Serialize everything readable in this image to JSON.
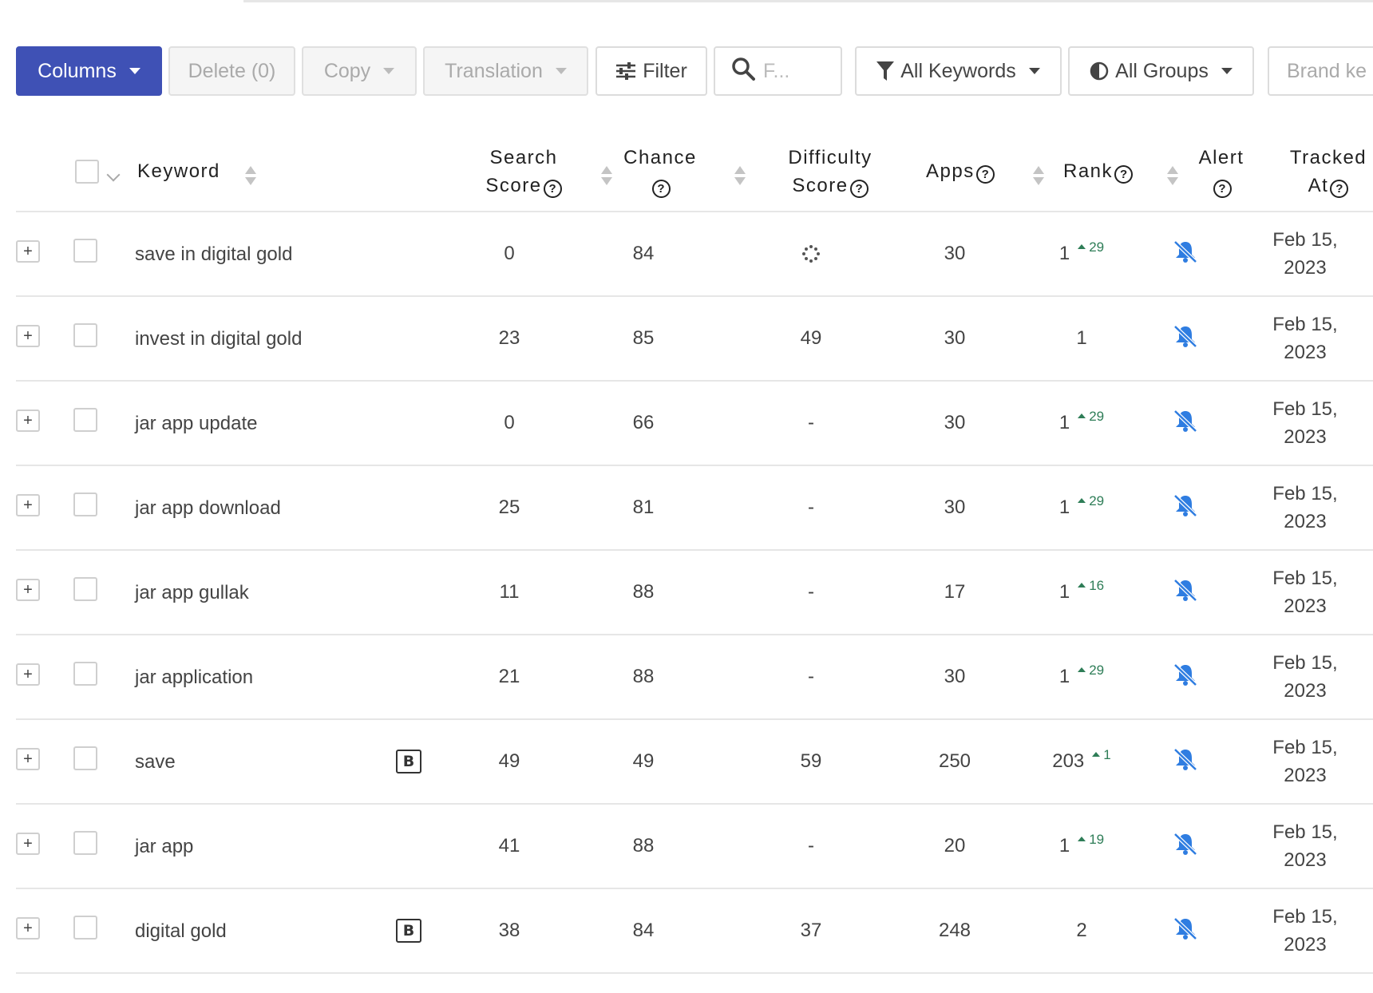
{
  "toolbar": {
    "columns_label": "Columns",
    "delete_label": "Delete (0)",
    "copy_label": "Copy",
    "translation_label": "Translation",
    "filter_label": "Filter",
    "search_placeholder": "F...",
    "keywords_label": "All Keywords",
    "groups_label": "All Groups",
    "brand_label": "Brand ke"
  },
  "columns": {
    "keyword": "Keyword",
    "search_line1": "Search",
    "search_line2": "Score",
    "chance": "Chance",
    "difficulty_line1": "Difficulty",
    "difficulty_line2": "Score",
    "apps": "Apps",
    "rank": "Rank",
    "alert": "Alert",
    "tracked_line1": "Tracked",
    "tracked_line2": "At",
    "help_glyph": "?"
  },
  "expand_glyph": "+",
  "brand_badge": "B",
  "rows": [
    {
      "keyword": "save in digital gold",
      "brand": false,
      "search_score": "0",
      "chance": "84",
      "difficulty": "",
      "difficulty_loading": true,
      "apps": "30",
      "rank": "1",
      "rank_change": "29",
      "tracked_line1": "Feb 15,",
      "tracked_line2": "2023"
    },
    {
      "keyword": "invest in digital gold",
      "brand": false,
      "search_score": "23",
      "chance": "85",
      "difficulty": "49",
      "apps": "30",
      "rank": "1",
      "rank_change": "",
      "tracked_line1": "Feb 15,",
      "tracked_line2": "2023"
    },
    {
      "keyword": "jar app update",
      "brand": false,
      "search_score": "0",
      "chance": "66",
      "difficulty": "-",
      "apps": "30",
      "rank": "1",
      "rank_change": "29",
      "tracked_line1": "Feb 15,",
      "tracked_line2": "2023"
    },
    {
      "keyword": "jar app download",
      "brand": false,
      "search_score": "25",
      "chance": "81",
      "difficulty": "-",
      "apps": "30",
      "rank": "1",
      "rank_change": "29",
      "tracked_line1": "Feb 15,",
      "tracked_line2": "2023"
    },
    {
      "keyword": "jar app gullak",
      "brand": false,
      "search_score": "11",
      "chance": "88",
      "difficulty": "-",
      "apps": "17",
      "rank": "1",
      "rank_change": "16",
      "tracked_line1": "Feb 15,",
      "tracked_line2": "2023"
    },
    {
      "keyword": "jar application",
      "brand": false,
      "search_score": "21",
      "chance": "88",
      "difficulty": "-",
      "apps": "30",
      "rank": "1",
      "rank_change": "29",
      "tracked_line1": "Feb 15,",
      "tracked_line2": "2023"
    },
    {
      "keyword": "save",
      "brand": true,
      "search_score": "49",
      "chance": "49",
      "difficulty": "59",
      "apps": "250",
      "rank": "203",
      "rank_change": "1",
      "tracked_line1": "Feb 15,",
      "tracked_line2": "2023"
    },
    {
      "keyword": "jar app",
      "brand": false,
      "search_score": "41",
      "chance": "88",
      "difficulty": "-",
      "apps": "20",
      "rank": "1",
      "rank_change": "19",
      "tracked_line1": "Feb 15,",
      "tracked_line2": "2023"
    },
    {
      "keyword": "digital gold",
      "brand": true,
      "search_score": "38",
      "chance": "84",
      "difficulty": "37",
      "apps": "248",
      "rank": "2",
      "rank_change": "",
      "tracked_line1": "Feb 15,",
      "tracked_line2": "2023"
    }
  ],
  "colors": {
    "primary": "#3f51b5",
    "rank_up": "#2e7d57",
    "alert_icon": "#2f7de1"
  },
  "icons": {
    "filter": "sliders-icon",
    "search": "search-icon",
    "keywords": "funnel-icon",
    "groups": "half-circle-icon",
    "alert": "bell-off-icon",
    "loading": "spinner-icon"
  }
}
